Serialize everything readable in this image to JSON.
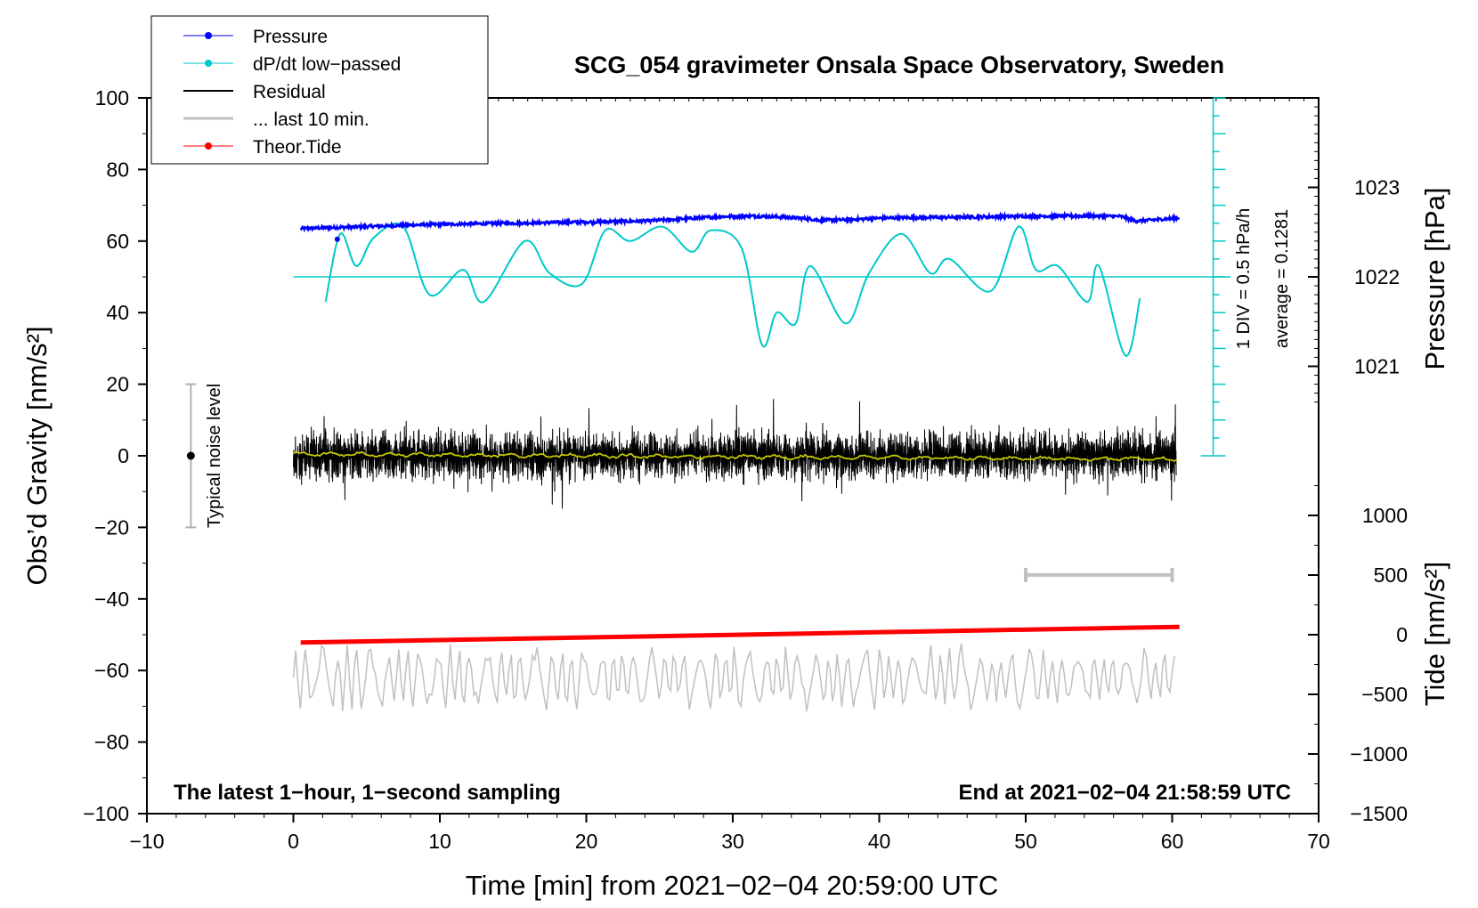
{
  "chart_data": {
    "type": "line",
    "title": "SCG_054 gravimeter Onsala Space Observatory, Sweden",
    "xlabel": "Time [min] from 2021−02−04 20:59:00 UTC",
    "ylabel_left": "Obs’d Gravity [nm/s²]",
    "ylabel_pressure": "Pressure [hPa]",
    "ylabel_tide": "Tide [nm/s²]",
    "xlim": [
      -10,
      70
    ],
    "ylim": [
      -100,
      100
    ],
    "x_ticks": [
      -10,
      0,
      10,
      20,
      30,
      40,
      50,
      60,
      70
    ],
    "x_tick_labels": [
      "−10",
      "0",
      "10",
      "20",
      "30",
      "40",
      "50",
      "60",
      "70"
    ],
    "y_ticks": [
      100,
      80,
      60,
      40,
      20,
      0,
      -20,
      -40,
      -60,
      -80,
      -100
    ],
    "y_tick_labels": [
      "100",
      "80",
      "60",
      "40",
      "20",
      "0",
      "−20",
      "−40",
      "−60",
      "−80",
      "−100"
    ],
    "pressure_axis": {
      "ticks": [
        1023,
        1022,
        1021
      ],
      "tick_labels": [
        "1023",
        "1022",
        "1021"
      ],
      "gravity_equiv": [
        75,
        50,
        25
      ]
    },
    "tide_axis": {
      "ticks": [
        1000,
        500,
        0,
        -500,
        -1000,
        -1500
      ],
      "tick_labels": [
        "1000",
        "500",
        "0",
        "−500",
        "−1000",
        "−1500"
      ],
      "gravity_equiv": [
        -16.67,
        -33.33,
        -50,
        -66.67,
        -83.33,
        -100
      ]
    },
    "legend": [
      {
        "label": "Pressure",
        "color": "#0000ff",
        "marker": true
      },
      {
        "label": "dP/dt low−passed",
        "color": "#00c8c8",
        "marker": true
      },
      {
        "label": "Residual",
        "color": "#000000",
        "marker": false
      },
      {
        "label": "... last 10 min.",
        "color": "#c0c0c0",
        "marker": false
      },
      {
        "label": "Theor.Tide",
        "color": "#ff0000",
        "marker": true
      }
    ],
    "series": [
      {
        "name": "Pressure",
        "color": "#0000ff",
        "x": [
          0.5,
          3,
          6,
          9,
          12,
          15,
          18,
          21,
          24,
          27,
          29,
          31,
          33,
          35,
          36,
          38,
          40,
          43,
          46,
          49,
          52,
          55,
          56.5,
          57.5,
          59,
          60.5
        ],
        "y": [
          63.5,
          63.8,
          64.2,
          64.6,
          64.8,
          65.0,
          65.2,
          65.4,
          65.6,
          66.3,
          66.8,
          67.0,
          66.8,
          66.3,
          65.8,
          66.0,
          66.4,
          66.6,
          66.7,
          66.9,
          67.0,
          67.0,
          66.9,
          65.6,
          66.0,
          66.5
        ]
      },
      {
        "name": "dP/dt low−passed",
        "color": "#00c8c8",
        "x": [
          2.2,
          3.2,
          4.3,
          5.5,
          7.5,
          9.3,
          11.6,
          13.0,
          15.8,
          17.5,
          19.7,
          21.3,
          23.0,
          25.2,
          27.2,
          28.5,
          30.6,
          32.0,
          33.0,
          34.3,
          35.3,
          37.7,
          39.3,
          41.5,
          43.5,
          44.8,
          47.6,
          49.5,
          50.7,
          52.2,
          54.2,
          55.0,
          56.8,
          57.8
        ],
        "y": [
          43,
          62,
          53,
          61,
          64,
          45,
          52,
          43,
          60,
          51,
          48,
          63,
          60,
          64,
          57,
          63,
          58,
          31,
          40,
          37,
          53,
          37,
          51,
          62,
          51,
          55,
          46,
          64,
          52,
          53,
          43,
          53,
          28,
          44
        ]
      },
      {
        "name": "Residual",
        "color": "#000000",
        "x": [
          0,
          60.3
        ],
        "y": [
          0,
          0
        ],
        "amplitude": 6,
        "note": "1-second noisy trace about 0 nm/s²"
      },
      {
        "name": "Residual smoothed",
        "color": "#c8c800",
        "x": [
          0,
          60.3
        ],
        "y": [
          0.5,
          -1
        ]
      },
      {
        "name": "... last 10 min.",
        "color": "#c0c0c0",
        "x": [
          0,
          60.3
        ],
        "y": [
          -62,
          -62
        ],
        "amplitude": 8
      },
      {
        "name": "Theor.Tide",
        "color": "#ff0000",
        "x": [
          0.5,
          60.5
        ],
        "y": [
          -52.2,
          -47.8
        ]
      }
    ],
    "annotations": {
      "noise_label": "Typical noise level",
      "noise_bar": {
        "x": -7,
        "y_low": -20,
        "y_high": 20,
        "center": 0
      },
      "range_bar": {
        "x_start": 50,
        "x_end": 60,
        "y": -33.3
      },
      "div_label": "1 DIV = 0.5 hPa/h",
      "average_label": "average = 0.1281",
      "scale_bar": {
        "x": 62.8,
        "y_low": 0,
        "y_high": 100,
        "divs": 20
      },
      "dpdt_reference": {
        "y": 50,
        "x_start": 0,
        "x_end": 64
      },
      "footer_left": "The latest 1−hour, 1−second sampling",
      "footer_right": "End at 2021−02−04 21:58:59 UTC"
    }
  }
}
